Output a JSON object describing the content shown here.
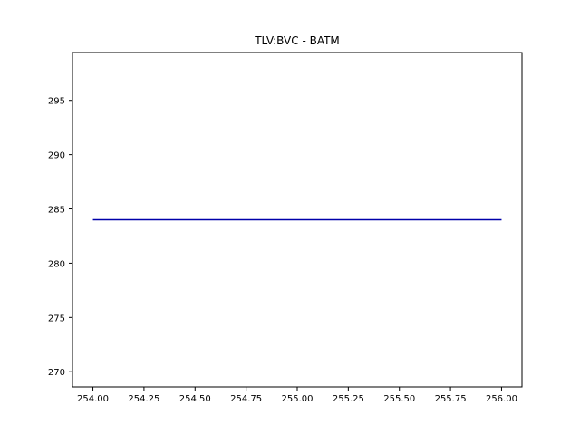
{
  "chart_data": {
    "type": "line",
    "title": "TLV:BVC - BATM",
    "xlabel": "",
    "ylabel": "",
    "xlim": [
      253.9,
      256.1
    ],
    "ylim": [
      268.6,
      299.4
    ],
    "x_ticks": [
      254.0,
      254.25,
      254.5,
      254.75,
      255.0,
      255.25,
      255.5,
      255.75,
      256.0
    ],
    "x_tick_labels": [
      "254.00",
      "254.25",
      "254.50",
      "254.75",
      "255.00",
      "255.25",
      "255.50",
      "255.75",
      "256.00"
    ],
    "y_ticks": [
      270,
      275,
      280,
      285,
      290,
      295
    ],
    "y_tick_labels": [
      "270",
      "275",
      "280",
      "285",
      "290",
      "295"
    ],
    "grid": false,
    "series": [
      {
        "x": [
          254.0,
          256.0
        ],
        "y": [
          284.0,
          284.0
        ],
        "color": "#0000aa"
      }
    ]
  }
}
